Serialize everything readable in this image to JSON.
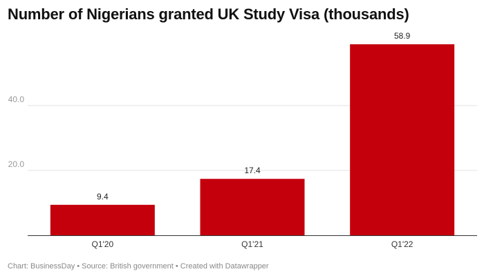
{
  "chart_data": {
    "type": "bar",
    "title": "Number of Nigerians granted UK Study Visa (thousands)",
    "xlabel": "",
    "ylabel": "",
    "categories": [
      "Q1'20",
      "Q1'21",
      "Q1'22"
    ],
    "values": [
      9.4,
      17.4,
      58.9
    ],
    "value_labels": [
      "9.4",
      "17.4",
      "58.9"
    ],
    "ylim": [
      0,
      60
    ],
    "yticks": [
      20,
      40
    ],
    "ytick_labels": [
      "20.0",
      "40.0"
    ],
    "grid": true,
    "legend": "none",
    "bar_color": "#c4000d"
  },
  "footer": {
    "text": "Chart: BusinessDay • Source: British government • Created with Datawrapper"
  }
}
